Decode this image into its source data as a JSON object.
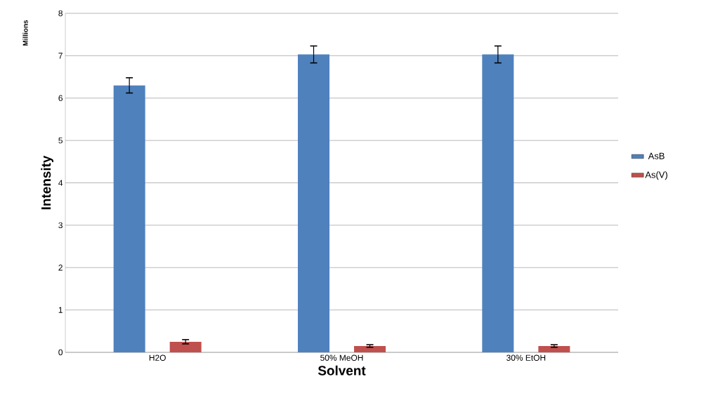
{
  "chart_data": {
    "type": "bar",
    "xlabel": "Solvent",
    "ylabel": "Intensity",
    "annotations": [
      "Millions"
    ],
    "categories": [
      "H2O",
      "50% MeOH",
      "30% EtOH"
    ],
    "series": [
      {
        "name": "AsB",
        "color": "#4f81bd",
        "values": [
          6.3,
          7.03,
          7.03
        ],
        "errors": [
          0.18,
          0.2,
          0.2
        ]
      },
      {
        "name": "As(V)",
        "color": "#c0504d",
        "values": [
          0.25,
          0.15,
          0.15
        ],
        "errors": [
          0.05,
          0.03,
          0.03
        ]
      }
    ],
    "ylim": [
      0,
      8
    ],
    "yticks": [
      0,
      1,
      2,
      3,
      4,
      5,
      6,
      7,
      8
    ],
    "grid": "y",
    "legend": "right"
  }
}
